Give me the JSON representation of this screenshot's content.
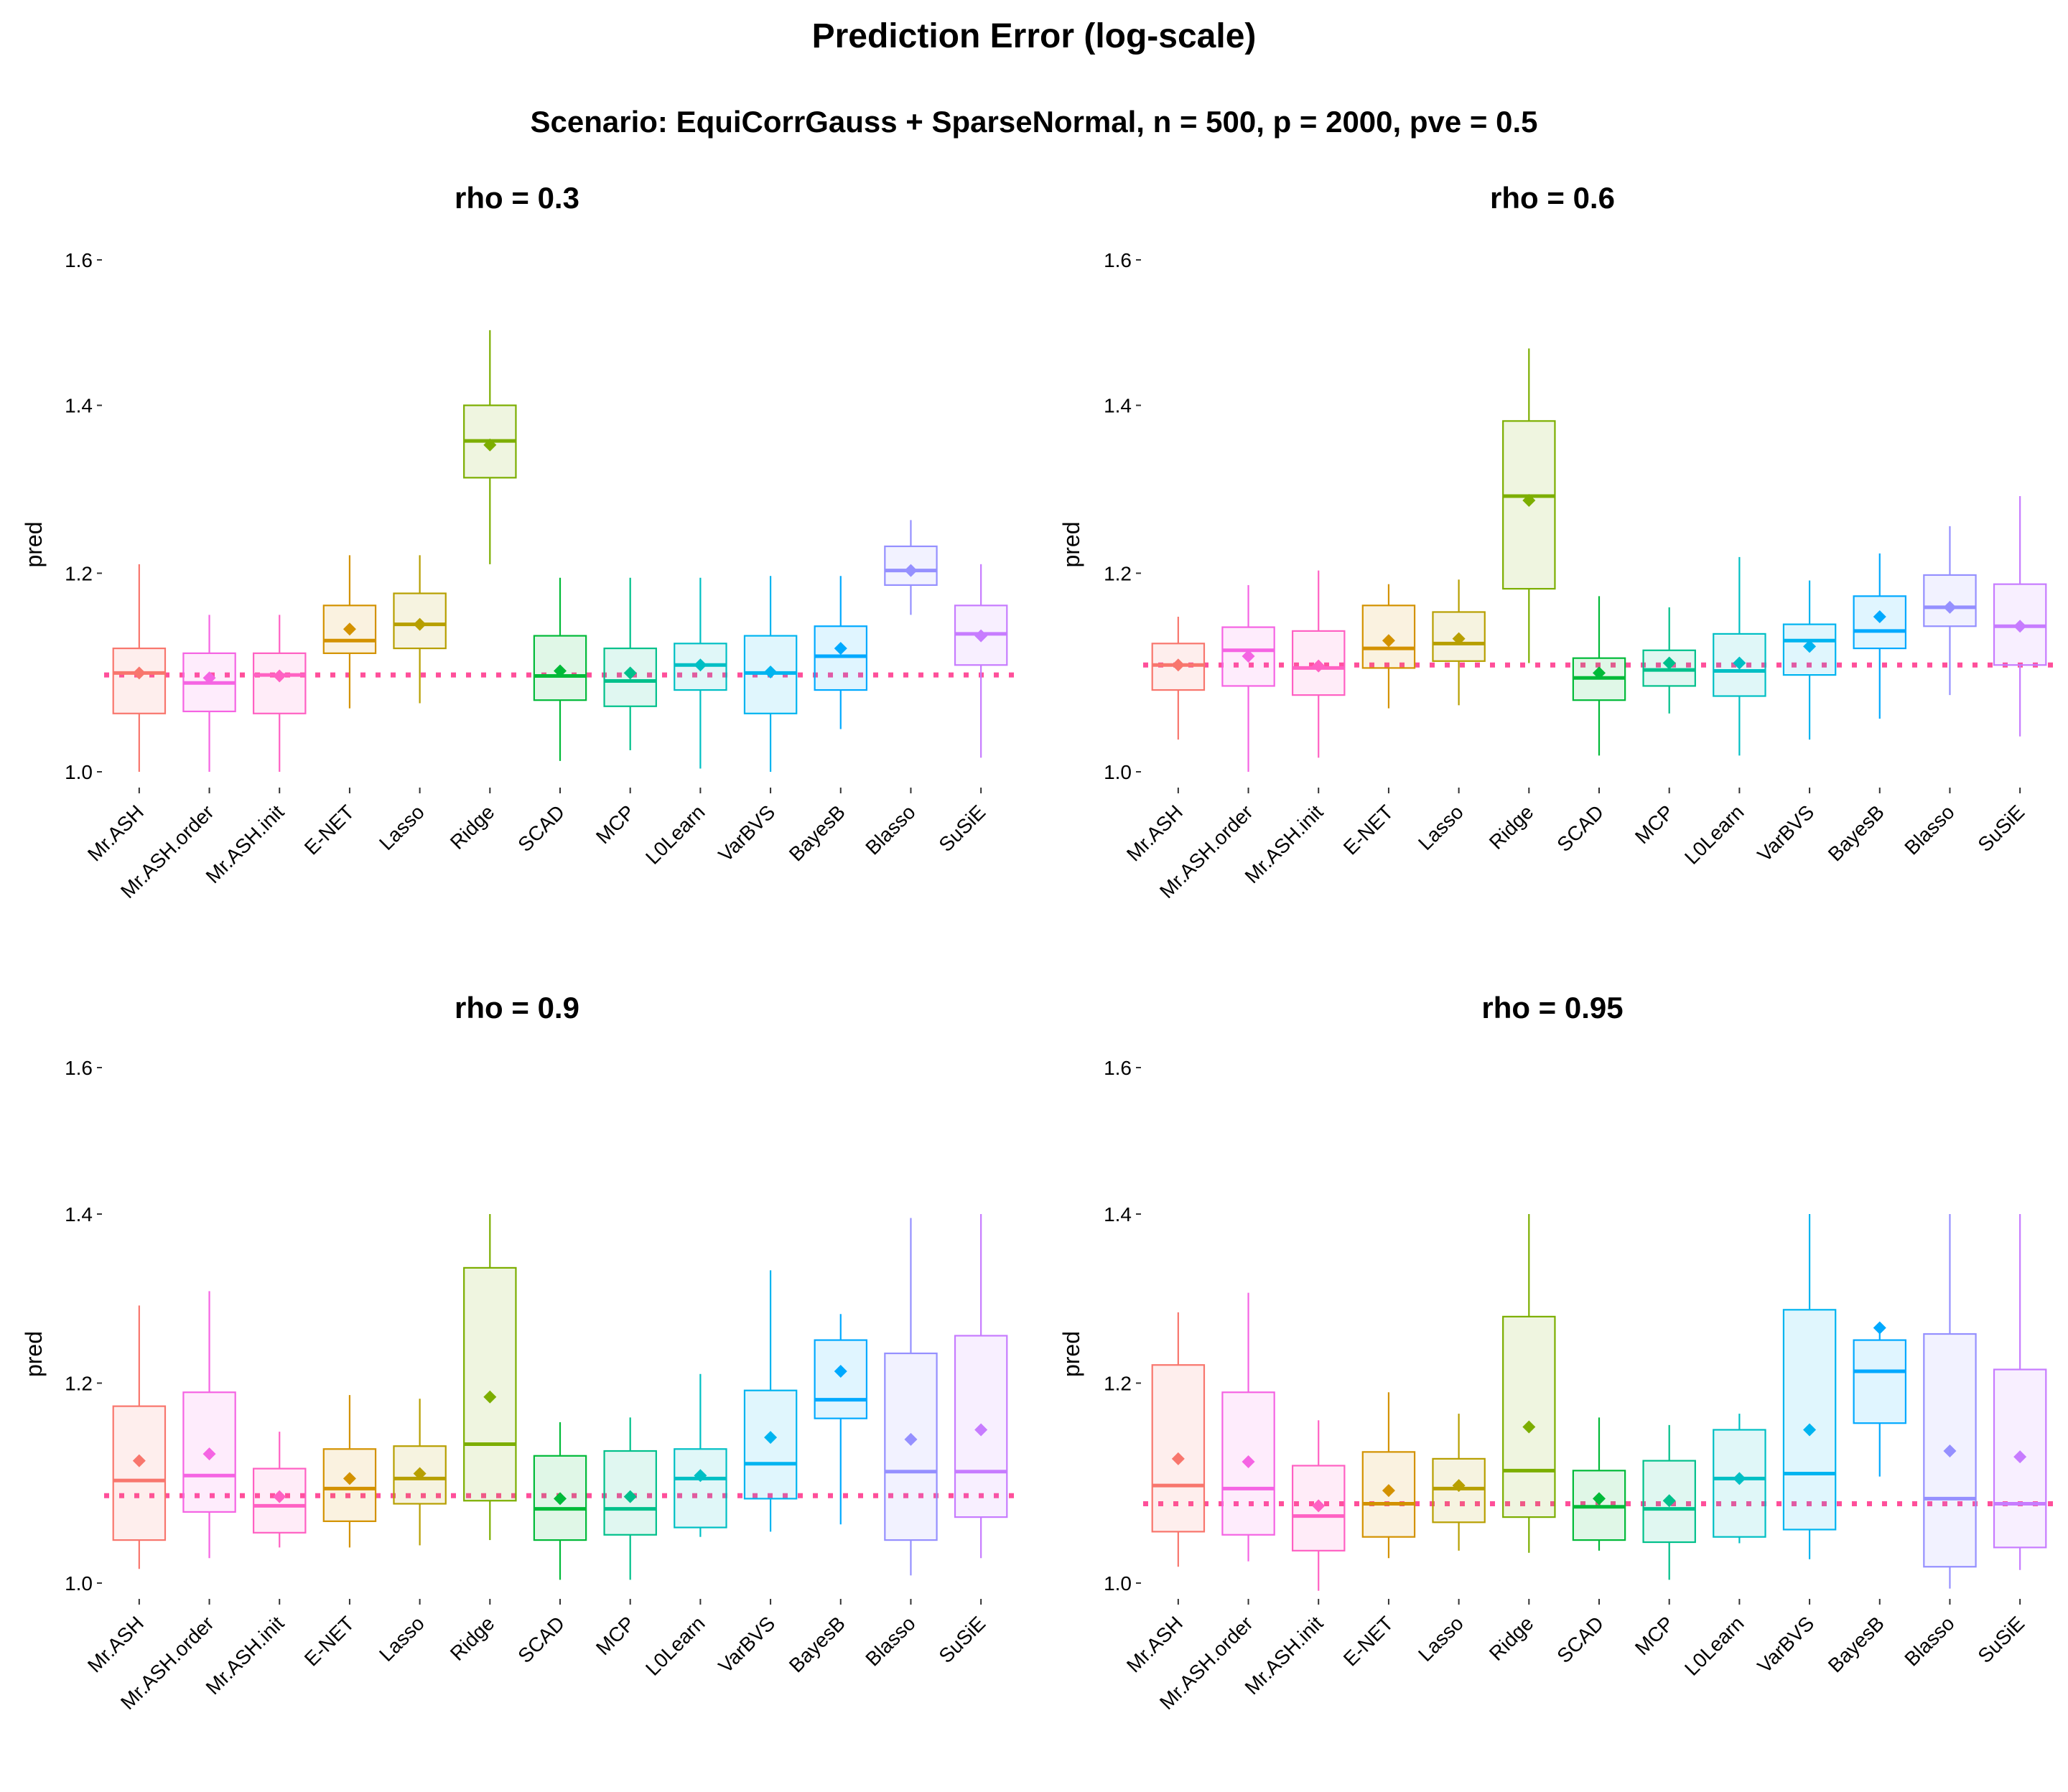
{
  "title": "Prediction Error (log-scale)",
  "subtitle": "Scenario: EquiCorrGauss + SparseNormal, n = 500, p = 2000, pve = 0.5",
  "colors": {
    "Mr.ASH": "#F8766D",
    "Mr.ASH.order": "#F564E3",
    "Mr.ASH.init": "#FF61C3",
    "E-NET": "#D39200",
    "Lasso": "#B79F00",
    "Ridge": "#7CAE00",
    "SCAD": "#00BA38",
    "MCP": "#00C08B",
    "L0Learn": "#00BFC4",
    "VarBVS": "#00B4F0",
    "BayesB": "#00A9FF",
    "Blasso": "#9590FF",
    "SuSiE": "#C77CFF",
    "reference": "#FF4F9A"
  },
  "chart_data": [
    {
      "type": "box",
      "title": "rho = 0.3",
      "ylabel": "pred",
      "ylim": [
        0.985,
        1.62
      ],
      "yticks": [
        "1.0",
        "1.2",
        "1.4",
        "1.6"
      ],
      "reference_line": 1.093,
      "categories": [
        "Mr.ASH",
        "Mr.ASH.order",
        "Mr.ASH.init",
        "E-NET",
        "Lasso",
        "Ridge",
        "SCAD",
        "MCP",
        "L0Learn",
        "VarBVS",
        "BayesB",
        "Blasso",
        "SuSiE"
      ],
      "boxes": [
        {
          "min": 1.0,
          "q1": 1.055,
          "median": 1.095,
          "q3": 1.12,
          "max": 1.21,
          "mean": 1.095
        },
        {
          "min": 1.0,
          "q1": 1.057,
          "median": 1.085,
          "q3": 1.115,
          "max": 1.155,
          "mean": 1.09
        },
        {
          "min": 1.0,
          "q1": 1.055,
          "median": 1.093,
          "q3": 1.115,
          "max": 1.155,
          "mean": 1.092
        },
        {
          "min": 1.06,
          "q1": 1.115,
          "median": 1.128,
          "q3": 1.165,
          "max": 1.22,
          "mean": 1.14
        },
        {
          "min": 1.065,
          "q1": 1.12,
          "median": 1.145,
          "q3": 1.178,
          "max": 1.22,
          "mean": 1.145
        },
        {
          "min": 1.21,
          "q1": 1.31,
          "median": 1.355,
          "q3": 1.4,
          "max": 1.5,
          "mean": 1.35
        },
        {
          "min": 1.01,
          "q1": 1.068,
          "median": 1.092,
          "q3": 1.133,
          "max": 1.195,
          "mean": 1.097
        },
        {
          "min": 1.02,
          "q1": 1.062,
          "median": 1.087,
          "q3": 1.12,
          "max": 1.195,
          "mean": 1.095
        },
        {
          "min": 1.003,
          "q1": 1.078,
          "median": 1.103,
          "q3": 1.125,
          "max": 1.195,
          "mean": 1.103
        },
        {
          "min": 1.0,
          "q1": 1.055,
          "median": 1.095,
          "q3": 1.133,
          "max": 1.197,
          "mean": 1.096
        },
        {
          "min": 1.04,
          "q1": 1.078,
          "median": 1.112,
          "q3": 1.143,
          "max": 1.197,
          "mean": 1.12
        },
        {
          "min": 1.155,
          "q1": 1.187,
          "median": 1.203,
          "q3": 1.23,
          "max": 1.26,
          "mean": 1.203
        },
        {
          "min": 1.013,
          "q1": 1.103,
          "median": 1.135,
          "q3": 1.165,
          "max": 1.21,
          "mean": 1.133
        }
      ]
    },
    {
      "type": "box",
      "title": "rho = 0.6",
      "ylabel": "pred",
      "ylim": [
        0.985,
        1.62
      ],
      "yticks": [
        "1.0",
        "1.2",
        "1.4",
        "1.6"
      ],
      "reference_line": 1.103,
      "categories": [
        "Mr.ASH",
        "Mr.ASH.order",
        "Mr.ASH.init",
        "E-NET",
        "Lasso",
        "Ridge",
        "SCAD",
        "MCP",
        "L0Learn",
        "VarBVS",
        "BayesB",
        "Blasso",
        "SuSiE"
      ],
      "boxes": [
        {
          "min": 1.03,
          "q1": 1.078,
          "median": 1.103,
          "q3": 1.125,
          "max": 1.153,
          "mean": 1.103
        },
        {
          "min": 1.0,
          "q1": 1.082,
          "median": 1.118,
          "q3": 1.142,
          "max": 1.187,
          "mean": 1.112
        },
        {
          "min": 1.013,
          "q1": 1.073,
          "median": 1.1,
          "q3": 1.138,
          "max": 1.203,
          "mean": 1.102
        },
        {
          "min": 1.06,
          "q1": 1.1,
          "median": 1.12,
          "q3": 1.165,
          "max": 1.188,
          "mean": 1.128
        },
        {
          "min": 1.063,
          "q1": 1.107,
          "median": 1.125,
          "q3": 1.158,
          "max": 1.193,
          "mean": 1.13
        },
        {
          "min": 1.105,
          "q1": 1.183,
          "median": 1.288,
          "q3": 1.38,
          "max": 1.475,
          "mean": 1.283
        },
        {
          "min": 1.015,
          "q1": 1.068,
          "median": 1.09,
          "q3": 1.11,
          "max": 1.175,
          "mean": 1.095
        },
        {
          "min": 1.055,
          "q1": 1.082,
          "median": 1.098,
          "q3": 1.118,
          "max": 1.163,
          "mean": 1.105
        },
        {
          "min": 1.015,
          "q1": 1.072,
          "median": 1.097,
          "q3": 1.135,
          "max": 1.218,
          "mean": 1.105
        },
        {
          "min": 1.03,
          "q1": 1.093,
          "median": 1.128,
          "q3": 1.145,
          "max": 1.192,
          "mean": 1.122
        },
        {
          "min": 1.05,
          "q1": 1.12,
          "median": 1.138,
          "q3": 1.175,
          "max": 1.222,
          "mean": 1.153
        },
        {
          "min": 1.073,
          "q1": 1.143,
          "median": 1.163,
          "q3": 1.198,
          "max": 1.253,
          "mean": 1.163
        },
        {
          "min": 1.033,
          "q1": 1.103,
          "median": 1.143,
          "q3": 1.188,
          "max": 1.288,
          "mean": 1.143
        }
      ]
    },
    {
      "type": "box",
      "title": "rho = 0.9",
      "ylabel": "pred",
      "ylim": [
        0.985,
        1.62
      ],
      "yticks": [
        "1.0",
        "1.2",
        "1.4",
        "1.6"
      ],
      "reference_line": 1.083,
      "categories": [
        "Mr.ASH",
        "Mr.ASH.order",
        "Mr.ASH.init",
        "E-NET",
        "Lasso",
        "Ridge",
        "SCAD",
        "MCP",
        "L0Learn",
        "VarBVS",
        "BayesB",
        "Blasso",
        "SuSiE"
      ],
      "boxes": [
        {
          "min": 1.013,
          "q1": 1.04,
          "median": 1.098,
          "q3": 1.175,
          "max": 1.288,
          "mean": 1.118
        },
        {
          "min": 1.023,
          "q1": 1.067,
          "median": 1.103,
          "q3": 1.19,
          "max": 1.305,
          "mean": 1.125
        },
        {
          "min": 1.033,
          "q1": 1.047,
          "median": 1.073,
          "q3": 1.11,
          "max": 1.148,
          "mean": 1.082
        },
        {
          "min": 1.033,
          "q1": 1.058,
          "median": 1.09,
          "q3": 1.13,
          "max": 1.187,
          "mean": 1.1
        },
        {
          "min": 1.035,
          "q1": 1.075,
          "median": 1.1,
          "q3": 1.133,
          "max": 1.183,
          "mean": 1.105
        },
        {
          "min": 1.04,
          "q1": 1.078,
          "median": 1.135,
          "q3": 1.333,
          "max": 1.4,
          "mean": 1.185
        },
        {
          "min": 1.003,
          "q1": 1.04,
          "median": 1.07,
          "q3": 1.123,
          "max": 1.158,
          "mean": 1.08
        },
        {
          "min": 1.003,
          "q1": 1.045,
          "median": 1.07,
          "q3": 1.128,
          "max": 1.163,
          "mean": 1.082
        },
        {
          "min": 1.043,
          "q1": 1.052,
          "median": 1.1,
          "q3": 1.13,
          "max": 1.21,
          "mean": 1.103
        },
        {
          "min": 1.048,
          "q1": 1.08,
          "median": 1.115,
          "q3": 1.192,
          "max": 1.33,
          "mean": 1.142
        },
        {
          "min": 1.055,
          "q1": 1.162,
          "median": 1.182,
          "q3": 1.248,
          "max": 1.278,
          "mean": 1.213
        },
        {
          "min": 1.007,
          "q1": 1.04,
          "median": 1.107,
          "q3": 1.233,
          "max": 1.395,
          "mean": 1.14
        },
        {
          "min": 1.023,
          "q1": 1.062,
          "median": 1.107,
          "q3": 1.253,
          "max": 1.4,
          "mean": 1.15
        }
      ]
    },
    {
      "type": "box",
      "title": "rho = 0.95",
      "ylabel": "pred",
      "ylim": [
        0.985,
        1.62
      ],
      "yticks": [
        "1.0",
        "1.2",
        "1.4",
        "1.6"
      ],
      "reference_line": 1.075,
      "categories": [
        "Mr.ASH",
        "Mr.ASH.order",
        "Mr.ASH.init",
        "E-NET",
        "Lasso",
        "Ridge",
        "SCAD",
        "MCP",
        "L0Learn",
        "VarBVS",
        "BayesB",
        "Blasso",
        "SuSiE"
      ],
      "boxes": [
        {
          "min": 1.015,
          "q1": 1.048,
          "median": 1.093,
          "q3": 1.22,
          "max": 1.28,
          "mean": 1.12
        },
        {
          "min": 1.02,
          "q1": 1.045,
          "median": 1.09,
          "q3": 1.19,
          "max": 1.303,
          "mean": 1.117
        },
        {
          "min": 0.993,
          "q1": 1.03,
          "median": 1.063,
          "q3": 1.113,
          "max": 1.16,
          "mean": 1.073
        },
        {
          "min": 1.023,
          "q1": 1.043,
          "median": 1.075,
          "q3": 1.127,
          "max": 1.19,
          "mean": 1.088
        },
        {
          "min": 1.03,
          "q1": 1.057,
          "median": 1.09,
          "q3": 1.12,
          "max": 1.167,
          "mean": 1.093
        },
        {
          "min": 1.028,
          "q1": 1.062,
          "median": 1.108,
          "q3": 1.275,
          "max": 1.4,
          "mean": 1.153
        },
        {
          "min": 1.03,
          "q1": 1.04,
          "median": 1.072,
          "q3": 1.108,
          "max": 1.163,
          "mean": 1.08
        },
        {
          "min": 1.003,
          "q1": 1.038,
          "median": 1.07,
          "q3": 1.118,
          "max": 1.155,
          "mean": 1.078
        },
        {
          "min": 1.037,
          "q1": 1.043,
          "median": 1.1,
          "q3": 1.15,
          "max": 1.167,
          "mean": 1.1
        },
        {
          "min": 1.022,
          "q1": 1.05,
          "median": 1.105,
          "q3": 1.283,
          "max": 1.4,
          "mean": 1.15
        },
        {
          "min": 1.102,
          "q1": 1.157,
          "median": 1.213,
          "q3": 1.248,
          "max": 1.262,
          "mean": 1.262
        },
        {
          "min": 0.995,
          "q1": 1.015,
          "median": 1.08,
          "q3": 1.255,
          "max": 1.4,
          "mean": 1.128
        },
        {
          "min": 1.012,
          "q1": 1.033,
          "median": 1.075,
          "q3": 1.215,
          "max": 1.4,
          "mean": 1.122
        }
      ]
    }
  ]
}
